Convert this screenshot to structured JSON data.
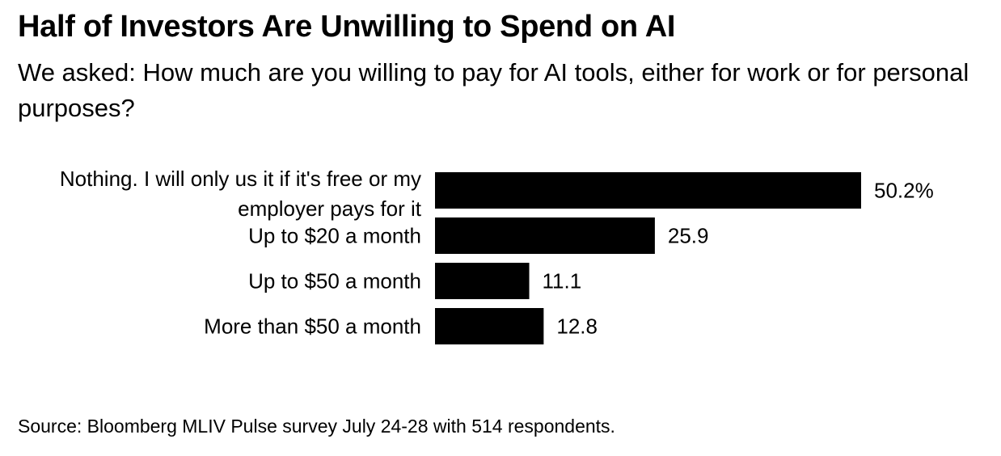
{
  "title": "Half of Investors Are Unwilling to Spend on AI",
  "subtitle": "We asked: How much are you willing to pay for AI tools, either for work or for personal purposes?",
  "source": "Source: Bloomberg MLIV Pulse survey July 24-28 with 514 respondents.",
  "chart_data": {
    "type": "bar",
    "orientation": "horizontal",
    "categories": [
      [
        "Nothing. I will only us it if it's free or my",
        "employer pays for it"
      ],
      [
        "Up to $20 a month"
      ],
      [
        "Up to $50 a month"
      ],
      [
        "More than $50 a month"
      ]
    ],
    "values": [
      50.2,
      25.9,
      11.1,
      12.8
    ],
    "data_labels": [
      "50.2%",
      "25.9",
      "11.1",
      "12.8"
    ],
    "unit": "%",
    "bar_color": "#000000",
    "grid": false,
    "legend": "none"
  }
}
